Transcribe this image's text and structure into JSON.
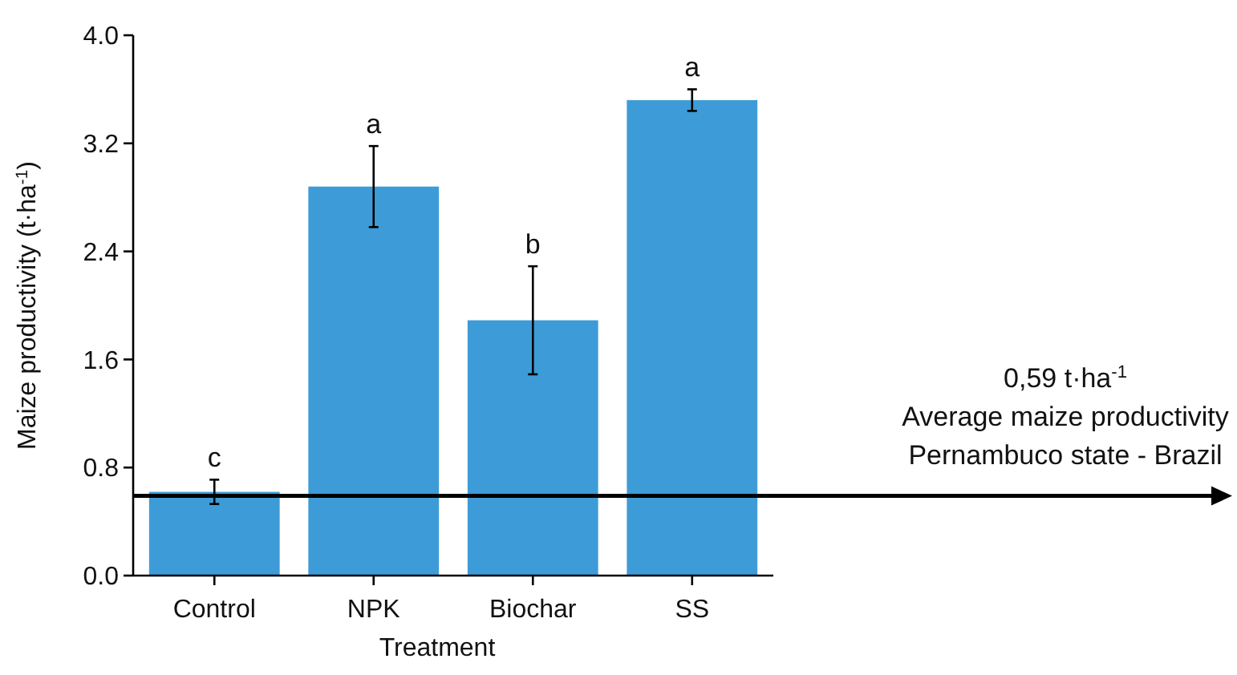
{
  "chart_data": {
    "type": "bar",
    "xlabel": "Treatment",
    "ylabel": "Maize productivity (t·ha$^{-1}$)",
    "categories": [
      "Control",
      "NPK",
      "Biochar",
      "SS"
    ],
    "values": [
      0.62,
      2.88,
      1.89,
      3.52
    ],
    "errors": [
      0.09,
      0.3,
      0.4,
      0.08
    ],
    "color": "#3d9bd7",
    "ylim": [
      0,
      4
    ],
    "yticks": [
      {
        "value": 0,
        "label": "0.0"
      },
      {
        "value": 0.8,
        "label": "0.8"
      },
      {
        "value": 1.6,
        "label": "1.6"
      },
      {
        "value": 2.4,
        "label": "2.4"
      },
      {
        "value": 3.2,
        "label": "3.2"
      },
      {
        "value": 4,
        "label": "4.0"
      }
    ],
    "grid": false,
    "ref_lines": [
      {
        "axis": "y",
        "value": 0.59,
        "label": "0,59 t·ha$^{-1}$\nAverage maize productivity\nPernambuco state - Brazil",
        "color": "#000000"
      }
    ],
    "annotations": [
      {
        "text": "c",
        "x": "Control",
        "y": 0.71
      },
      {
        "text": "a",
        "x": "NPK",
        "y": 3.18
      },
      {
        "text": "b",
        "x": "Biochar",
        "y": 2.29
      },
      {
        "text": "a",
        "x": "SS",
        "y": 3.6
      }
    ]
  }
}
